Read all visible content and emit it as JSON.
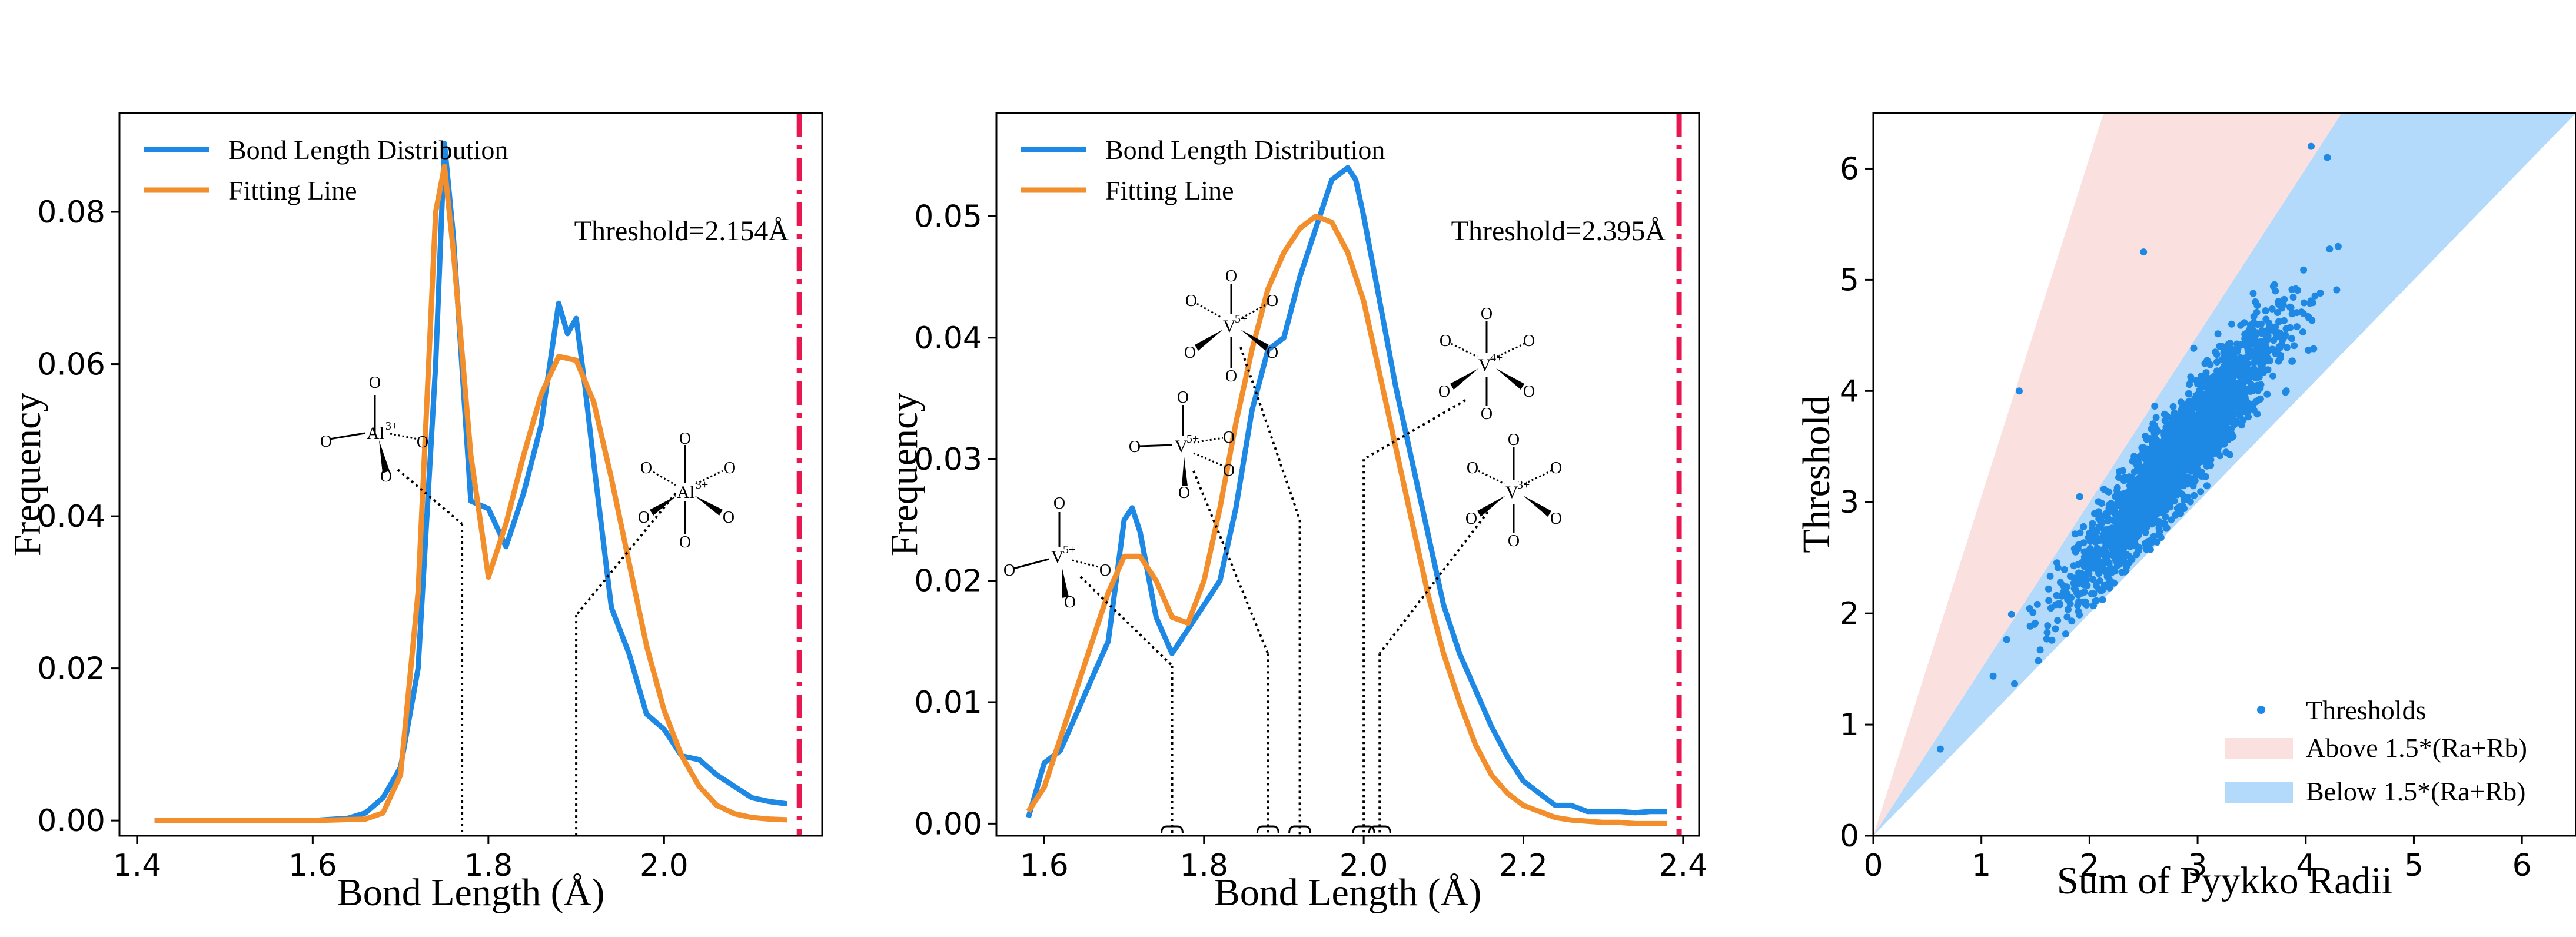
{
  "colors": {
    "distribution": "#1e88e5",
    "fitting": "#f28e2b",
    "threshold": "#e8174f",
    "above_fill": "#fbe0e0",
    "below_fill": "#b3d9fb",
    "scatter": "#1e88e5"
  },
  "chart_data": [
    {
      "type": "line",
      "xlabel": "Bond Length (Å)",
      "ylabel": "Frequency",
      "xlim": [
        1.38,
        2.18
      ],
      "ylim": [
        -0.002,
        0.093
      ],
      "xticks": [
        1.4,
        1.6,
        1.8,
        2.0
      ],
      "xtick_labels": [
        "1.4",
        "1.6",
        "1.8",
        "2.0"
      ],
      "yticks": [
        0.0,
        0.02,
        0.04,
        0.06,
        0.08
      ],
      "ytick_labels": [
        "0.00",
        "0.02",
        "0.04",
        "0.06",
        "0.08"
      ],
      "legend": [
        "Bond Length Distribution",
        "Fitting Line"
      ],
      "legend_position": "top-left",
      "threshold": {
        "x": 2.154,
        "label": "Threshold=2.154Å"
      },
      "series": [
        {
          "name": "Bond Length Distribution",
          "x": [
            1.42,
            1.5,
            1.6,
            1.64,
            1.66,
            1.68,
            1.7,
            1.72,
            1.74,
            1.75,
            1.76,
            1.78,
            1.8,
            1.82,
            1.84,
            1.86,
            1.88,
            1.89,
            1.9,
            1.91,
            1.92,
            1.94,
            1.96,
            1.98,
            2.0,
            2.02,
            2.04,
            2.06,
            2.08,
            2.1,
            2.12,
            2.14
          ],
          "values": [
            0.0,
            0.0,
            0.0,
            0.0003,
            0.001,
            0.003,
            0.007,
            0.02,
            0.06,
            0.089,
            0.077,
            0.042,
            0.041,
            0.036,
            0.043,
            0.052,
            0.068,
            0.064,
            0.066,
            0.057,
            0.047,
            0.028,
            0.022,
            0.014,
            0.012,
            0.0085,
            0.008,
            0.006,
            0.0045,
            0.003,
            0.0025,
            0.0022
          ]
        },
        {
          "name": "Fitting Line",
          "x": [
            1.42,
            1.5,
            1.6,
            1.66,
            1.68,
            1.7,
            1.72,
            1.74,
            1.75,
            1.76,
            1.78,
            1.8,
            1.82,
            1.84,
            1.86,
            1.88,
            1.9,
            1.92,
            1.94,
            1.96,
            1.98,
            2.0,
            2.02,
            2.04,
            2.06,
            2.08,
            2.1,
            2.12,
            2.14
          ],
          "values": [
            0.0,
            0.0,
            0.0,
            0.0002,
            0.001,
            0.006,
            0.03,
            0.08,
            0.086,
            0.075,
            0.048,
            0.032,
            0.039,
            0.048,
            0.056,
            0.061,
            0.0605,
            0.055,
            0.045,
            0.034,
            0.023,
            0.0145,
            0.0085,
            0.0045,
            0.002,
            0.0009,
            0.0004,
            0.0002,
            0.0001
          ]
        }
      ],
      "annotations": [
        {
          "center": "Al",
          "charge": "3+",
          "type": "tetrahedral",
          "x": 1.77,
          "y": 0.039
        },
        {
          "center": "Al",
          "charge": "3+",
          "type": "octahedral",
          "x": 1.9,
          "y": 0.027
        }
      ]
    },
    {
      "type": "line",
      "xlabel": "Bond Length (Å)",
      "ylabel": "Frequency",
      "xlim": [
        1.54,
        2.42
      ],
      "ylim": [
        -0.001,
        0.0585
      ],
      "xticks": [
        1.6,
        1.8,
        2.0,
        2.2,
        2.4
      ],
      "xtick_labels": [
        "1.6",
        "1.8",
        "2.0",
        "2.2",
        "2.4"
      ],
      "yticks": [
        0.0,
        0.01,
        0.02,
        0.03,
        0.04,
        0.05
      ],
      "ytick_labels": [
        "0.00",
        "0.01",
        "0.02",
        "0.03",
        "0.04",
        "0.05"
      ],
      "legend": [
        "Bond Length Distribution",
        "Fitting Line"
      ],
      "legend_position": "top-left",
      "threshold": {
        "x": 2.395,
        "label": "Threshold=2.395Å"
      },
      "series": [
        {
          "name": "Bond Length Distribution",
          "x": [
            1.58,
            1.6,
            1.62,
            1.64,
            1.66,
            1.68,
            1.7,
            1.71,
            1.72,
            1.74,
            1.76,
            1.78,
            1.8,
            1.82,
            1.84,
            1.86,
            1.88,
            1.9,
            1.92,
            1.94,
            1.96,
            1.98,
            1.99,
            2.0,
            2.02,
            2.04,
            2.06,
            2.08,
            2.1,
            2.12,
            2.14,
            2.16,
            2.18,
            2.2,
            2.22,
            2.24,
            2.26,
            2.28,
            2.3,
            2.32,
            2.34,
            2.36,
            2.38
          ],
          "values": [
            0.0005,
            0.005,
            0.006,
            0.009,
            0.012,
            0.015,
            0.025,
            0.026,
            0.024,
            0.017,
            0.014,
            0.016,
            0.018,
            0.02,
            0.026,
            0.034,
            0.039,
            0.04,
            0.045,
            0.049,
            0.053,
            0.054,
            0.053,
            0.05,
            0.043,
            0.036,
            0.03,
            0.024,
            0.018,
            0.014,
            0.011,
            0.008,
            0.0055,
            0.0035,
            0.0025,
            0.0015,
            0.0015,
            0.001,
            0.001,
            0.001,
            0.0009,
            0.001,
            0.001
          ]
        },
        {
          "name": "Fitting Line",
          "x": [
            1.58,
            1.6,
            1.62,
            1.64,
            1.66,
            1.68,
            1.7,
            1.72,
            1.74,
            1.76,
            1.78,
            1.8,
            1.82,
            1.84,
            1.86,
            1.88,
            1.9,
            1.92,
            1.94,
            1.96,
            1.98,
            2.0,
            2.02,
            2.04,
            2.06,
            2.08,
            2.1,
            2.12,
            2.14,
            2.16,
            2.18,
            2.2,
            2.22,
            2.24,
            2.26,
            2.28,
            2.3,
            2.32,
            2.34,
            2.36,
            2.38
          ],
          "values": [
            0.001,
            0.003,
            0.007,
            0.011,
            0.015,
            0.019,
            0.022,
            0.022,
            0.02,
            0.017,
            0.0165,
            0.02,
            0.026,
            0.033,
            0.039,
            0.044,
            0.047,
            0.049,
            0.05,
            0.0495,
            0.047,
            0.043,
            0.037,
            0.031,
            0.025,
            0.019,
            0.014,
            0.01,
            0.0065,
            0.004,
            0.0025,
            0.0015,
            0.001,
            0.0005,
            0.0003,
            0.0002,
            0.0001,
            0.0001,
            0.0,
            0.0,
            0.0
          ]
        }
      ],
      "annotations": [
        {
          "center": "V",
          "charge": "5+",
          "type": "tetrahedral",
          "x": 1.76,
          "y": 0.013
        },
        {
          "center": "V",
          "charge": "5+",
          "type": "square-pyramidal",
          "x": 1.88,
          "y": 0.014
        },
        {
          "center": "V",
          "charge": "5+",
          "type": "octahedral",
          "x": 1.92,
          "y": 0.025
        },
        {
          "center": "V",
          "charge": "4+",
          "type": "octahedral",
          "x": 2.0,
          "y": 0.03
        },
        {
          "center": "V",
          "charge": "3+",
          "type": "octahedral",
          "x": 2.02,
          "y": 0.014
        }
      ]
    },
    {
      "type": "scatter",
      "xlabel": "Sum of Pyykko Radii",
      "ylabel": "Threshold",
      "xlim": [
        0,
        6.5
      ],
      "ylim": [
        0,
        6.5
      ],
      "xticks": [
        0,
        1,
        2,
        3,
        4,
        5,
        6
      ],
      "xtick_labels": [
        "0",
        "1",
        "2",
        "3",
        "4",
        "5",
        "6"
      ],
      "yticks": [
        0,
        1,
        2,
        3,
        4,
        5,
        6
      ],
      "ytick_labels": [
        "0",
        "1",
        "2",
        "3",
        "4",
        "5",
        "6"
      ],
      "legend": [
        "Thresholds",
        "Above 1.5*(Ra+Rb)",
        "Below 1.5*(Ra+Rb)"
      ],
      "legend_position": "bottom-right",
      "regions": [
        {
          "name": "Above 1.5*(Ra+Rb)",
          "lower_slope": 1.5,
          "upper_slope": 3.05
        },
        {
          "name": "Below 1.5*(Ra+Rb)",
          "lower_slope": 1.0,
          "upper_slope": 1.5
        }
      ],
      "scatter_model": {
        "slope": 1.18,
        "intercept": 0.1,
        "x_center": 2.8,
        "x_sd": 0.45,
        "noise_sd": 0.22,
        "points": 2600
      },
      "notable_points": [
        {
          "x": 0.62,
          "y": 0.78
        },
        {
          "x": 1.35,
          "y": 4.0
        },
        {
          "x": 2.5,
          "y": 5.25
        },
        {
          "x": 4.05,
          "y": 6.2
        },
        {
          "x": 4.2,
          "y": 6.1
        },
        {
          "x": 4.3,
          "y": 5.3
        }
      ]
    }
  ]
}
